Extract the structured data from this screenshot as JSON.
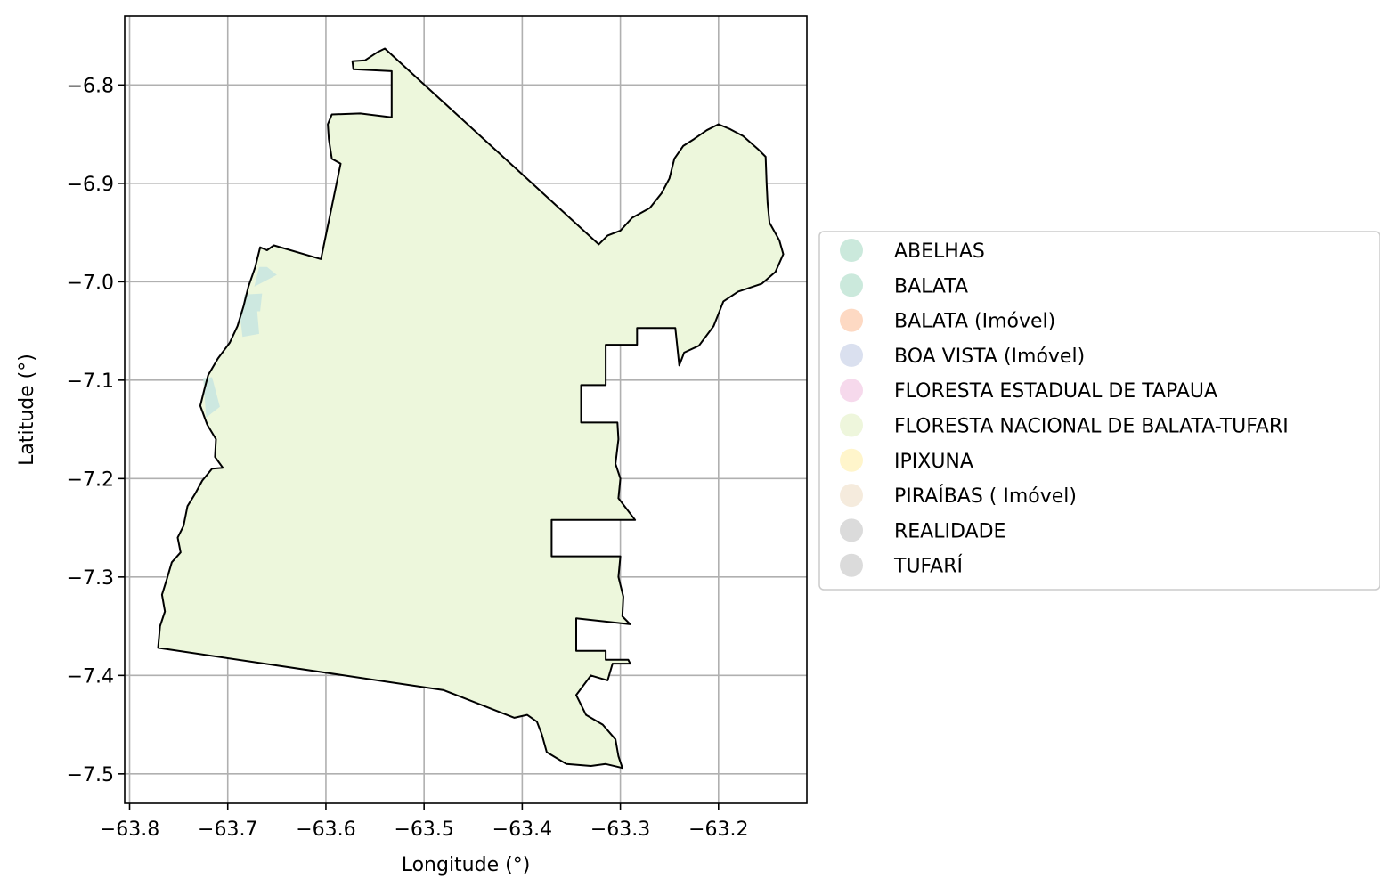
{
  "map": {
    "axes": {
      "xlabel": "Longitude (°)",
      "ylabel": "Latitude (°)",
      "xlim": [
        -63.805,
        -63.11
      ],
      "ylim": [
        -7.53,
        -6.73
      ],
      "grid": true,
      "xticks": [
        {
          "value": -63.8,
          "label": "−63.8"
        },
        {
          "value": -63.7,
          "label": "−63.7"
        },
        {
          "value": -63.6,
          "label": "−63.6"
        },
        {
          "value": -63.5,
          "label": "−63.5"
        },
        {
          "value": -63.4,
          "label": "−63.4"
        },
        {
          "value": -63.3,
          "label": "−63.3"
        },
        {
          "value": -63.2,
          "label": "−63.2"
        }
      ],
      "yticks": [
        {
          "value": -6.8,
          "label": "−6.8"
        },
        {
          "value": -6.9,
          "label": "−6.9"
        },
        {
          "value": -7.0,
          "label": "−7.0"
        },
        {
          "value": -7.1,
          "label": "−7.1"
        },
        {
          "value": -7.2,
          "label": "−7.2"
        },
        {
          "value": -7.3,
          "label": "−7.3"
        },
        {
          "value": -7.4,
          "label": "−7.4"
        },
        {
          "value": -7.5,
          "label": "−7.5"
        }
      ]
    },
    "main_area": {
      "name": "FLORESTA NACIONAL DE BALATA-TUFARI",
      "fill": "#edf7dc",
      "stroke": "#000000",
      "boundary": [
        [
          -63.771,
          -7.372
        ],
        [
          -63.769,
          -7.35
        ],
        [
          -63.764,
          -7.335
        ],
        [
          -63.767,
          -7.318
        ],
        [
          -63.762,
          -7.302
        ],
        [
          -63.757,
          -7.285
        ],
        [
          -63.748,
          -7.275
        ],
        [
          -63.751,
          -7.26
        ],
        [
          -63.745,
          -7.248
        ],
        [
          -63.741,
          -7.228
        ],
        [
          -63.733,
          -7.215
        ],
        [
          -63.726,
          -7.202
        ],
        [
          -63.716,
          -7.19
        ],
        [
          -63.705,
          -7.189
        ],
        [
          -63.713,
          -7.178
        ],
        [
          -63.712,
          -7.16
        ],
        [
          -63.721,
          -7.145
        ],
        [
          -63.728,
          -7.126
        ],
        [
          -63.724,
          -7.11
        ],
        [
          -63.72,
          -7.095
        ],
        [
          -63.71,
          -7.078
        ],
        [
          -63.698,
          -7.062
        ],
        [
          -63.69,
          -7.045
        ],
        [
          -63.684,
          -7.025
        ],
        [
          -63.679,
          -7.005
        ],
        [
          -63.672,
          -6.985
        ],
        [
          -63.667,
          -6.965
        ],
        [
          -63.66,
          -6.968
        ],
        [
          -63.653,
          -6.963
        ],
        [
          -63.605,
          -6.977
        ],
        [
          -63.585,
          -6.88
        ],
        [
          -63.594,
          -6.875
        ],
        [
          -63.597,
          -6.855
        ],
        [
          -63.598,
          -6.84
        ],
        [
          -63.594,
          -6.83
        ],
        [
          -63.565,
          -6.829
        ],
        [
          -63.533,
          -6.833
        ],
        [
          -63.533,
          -6.786
        ],
        [
          -63.572,
          -6.784
        ],
        [
          -63.573,
          -6.776
        ],
        [
          -63.56,
          -6.775
        ],
        [
          -63.548,
          -6.767
        ],
        [
          -63.54,
          -6.763
        ],
        [
          -63.322,
          -6.962
        ],
        [
          -63.313,
          -6.953
        ],
        [
          -63.3,
          -6.948
        ],
        [
          -63.288,
          -6.935
        ],
        [
          -63.27,
          -6.925
        ],
        [
          -63.258,
          -6.91
        ],
        [
          -63.25,
          -6.895
        ],
        [
          -63.245,
          -6.875
        ],
        [
          -63.236,
          -6.862
        ],
        [
          -63.225,
          -6.855
        ],
        [
          -63.212,
          -6.846
        ],
        [
          -63.2,
          -6.84
        ],
        [
          -63.188,
          -6.845
        ],
        [
          -63.175,
          -6.852
        ],
        [
          -63.16,
          -6.865
        ],
        [
          -63.152,
          -6.873
        ],
        [
          -63.151,
          -6.9
        ],
        [
          -63.15,
          -6.92
        ],
        [
          -63.148,
          -6.94
        ],
        [
          -63.138,
          -6.958
        ],
        [
          -63.134,
          -6.972
        ],
        [
          -63.142,
          -6.99
        ],
        [
          -63.156,
          -7.002
        ],
        [
          -63.18,
          -7.01
        ],
        [
          -63.195,
          -7.02
        ],
        [
          -63.205,
          -7.045
        ],
        [
          -63.22,
          -7.065
        ],
        [
          -63.235,
          -7.072
        ],
        [
          -63.24,
          -7.085
        ],
        [
          -63.244,
          -7.047
        ],
        [
          -63.283,
          -7.047
        ],
        [
          -63.283,
          -7.064
        ],
        [
          -63.315,
          -7.064
        ],
        [
          -63.315,
          -7.105
        ],
        [
          -63.34,
          -7.105
        ],
        [
          -63.34,
          -7.143
        ],
        [
          -63.303,
          -7.143
        ],
        [
          -63.302,
          -7.16
        ],
        [
          -63.305,
          -7.185
        ],
        [
          -63.3,
          -7.2
        ],
        [
          -63.302,
          -7.22
        ],
        [
          -63.285,
          -7.242
        ],
        [
          -63.37,
          -7.242
        ],
        [
          -63.37,
          -7.279
        ],
        [
          -63.3,
          -7.279
        ],
        [
          -63.302,
          -7.3
        ],
        [
          -63.297,
          -7.32
        ],
        [
          -63.298,
          -7.34
        ],
        [
          -63.29,
          -7.348
        ],
        [
          -63.345,
          -7.342
        ],
        [
          -63.345,
          -7.375
        ],
        [
          -63.315,
          -7.375
        ],
        [
          -63.315,
          -7.384
        ],
        [
          -63.292,
          -7.384
        ],
        [
          -63.29,
          -7.388
        ],
        [
          -63.308,
          -7.388
        ],
        [
          -63.313,
          -7.405
        ],
        [
          -63.33,
          -7.4
        ],
        [
          -63.345,
          -7.42
        ],
        [
          -63.335,
          -7.44
        ],
        [
          -63.318,
          -7.45
        ],
        [
          -63.305,
          -7.465
        ],
        [
          -63.302,
          -7.482
        ],
        [
          -63.298,
          -7.494
        ],
        [
          -63.315,
          -7.49
        ],
        [
          -63.33,
          -7.492
        ],
        [
          -63.355,
          -7.49
        ],
        [
          -63.375,
          -7.478
        ],
        [
          -63.38,
          -7.46
        ],
        [
          -63.385,
          -7.447
        ],
        [
          -63.395,
          -7.44
        ],
        [
          -63.408,
          -7.443
        ],
        [
          -63.48,
          -7.415
        ],
        [
          -63.771,
          -7.372
        ]
      ]
    },
    "small_parcels": [
      {
        "name": "ABELHAS",
        "fill": "#cde8e0",
        "points": [
          [
            -63.66,
            -6.985
          ],
          [
            -63.65,
            -6.993
          ],
          [
            -63.673,
            -7.005
          ],
          [
            -63.668,
            -6.985
          ]
        ]
      },
      {
        "name": "BALATA",
        "fill": "#cde8e0",
        "points": [
          [
            -63.683,
            -7.013
          ],
          [
            -63.665,
            -7.012
          ],
          [
            -63.667,
            -7.03
          ],
          [
            -63.685,
            -7.03
          ]
        ]
      },
      {
        "name": "BALATA",
        "fill": "#cde8e0",
        "points": [
          [
            -63.688,
            -7.03
          ],
          [
            -63.67,
            -7.03
          ],
          [
            -63.668,
            -7.053
          ],
          [
            -63.685,
            -7.056
          ]
        ]
      },
      {
        "name": "BALATA",
        "fill": "#cde8e0",
        "points": [
          [
            -63.725,
            -7.098
          ],
          [
            -63.716,
            -7.097
          ],
          [
            -63.708,
            -7.127
          ],
          [
            -63.722,
            -7.138
          ]
        ]
      }
    ]
  },
  "legend": {
    "placement": "center-right",
    "items": [
      {
        "label": "ABELHAS",
        "color": "#cbe9dc"
      },
      {
        "label": "BALATA",
        "color": "#cbe9dc"
      },
      {
        "label": "BALATA (Imóvel)",
        "color": "#fdd9c3"
      },
      {
        "label": "BOA VISTA (Imóvel)",
        "color": "#dae0ef"
      },
      {
        "label": "FLORESTA ESTADUAL DE TAPAUA",
        "color": "#f6d9ec"
      },
      {
        "label": "FLORESTA NACIONAL DE BALATA-TUFARI",
        "color": "#eef6dc"
      },
      {
        "label": "IPIXUNA",
        "color": "#fff5cb"
      },
      {
        "label": "PIRAÍBAS ( Imóvel)",
        "color": "#f5ebdd"
      },
      {
        "label": "REALIDADE",
        "color": "#dbdbdb"
      },
      {
        "label": "TUFARÍ",
        "color": "#dbdbdb"
      }
    ]
  }
}
